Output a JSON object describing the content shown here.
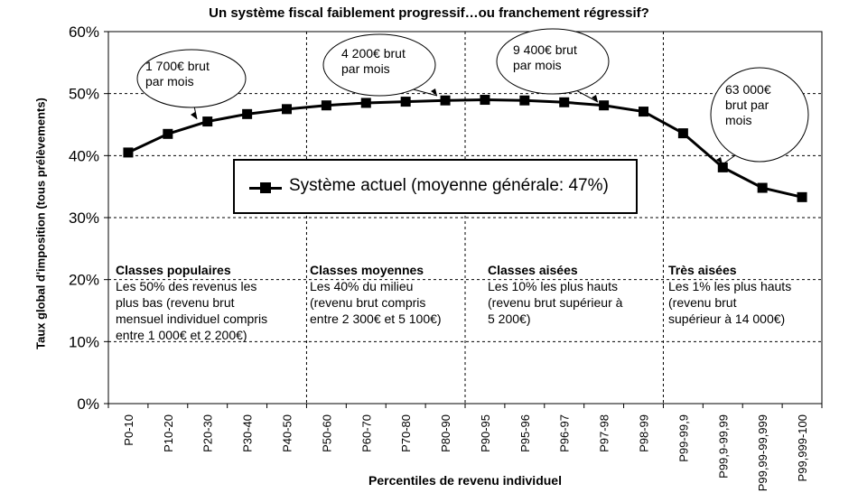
{
  "chart_data": {
    "type": "line",
    "title": "Un système fiscal faiblement progressif…ou franchement régressif?",
    "xlabel": "Percentiles de revenu individuel",
    "ylabel": "Taux global d'imposition (tous prélèvements)",
    "ylim": [
      0,
      60
    ],
    "yticks": [
      "0%",
      "10%",
      "20%",
      "30%",
      "40%",
      "50%",
      "60%"
    ],
    "categories": [
      "P0-10",
      "P10-20",
      "P20-30",
      "P30-40",
      "P40-50",
      "P50-60",
      "P60-70",
      "P70-80",
      "P80-90",
      "P90-95",
      "P95-96",
      "P96-97",
      "P97-98",
      "P98-99",
      "P99-99,9",
      "P99,9-99,99",
      "P99,99-99,999",
      "P99,999-100"
    ],
    "series": [
      {
        "name": "Système actuel (moyenne générale: 47%)",
        "values": [
          40.5,
          43.5,
          45.5,
          46.7,
          47.5,
          48.1,
          48.5,
          48.7,
          48.9,
          49.0,
          48.9,
          48.6,
          48.1,
          47.1,
          43.6,
          38.1,
          34.8,
          33.3
        ]
      }
    ],
    "legend": "center",
    "sections": [
      {
        "title": "Classes populaires",
        "lines": [
          "Les 50% des revenus les",
          "plus bas (revenu brut",
          "mensuel individuel compris",
          "entre 1 000€ et 2 200€)"
        ]
      },
      {
        "title": "Classes moyennes",
        "lines": [
          "Les 40% du milieu",
          "(revenu brut compris",
          "entre 2 300€ et 5 100€)"
        ]
      },
      {
        "title": "Classes aisées",
        "lines": [
          "Les 10% les plus hauts",
          "(revenu brut supérieur à",
          "5 200€)"
        ]
      },
      {
        "title": "Très aisées",
        "lines": [
          "Les 1% les plus hauts",
          "(revenu brut",
          "supérieur à 14 000€)"
        ]
      }
    ],
    "callouts": [
      {
        "lines": [
          "1 700€ brut",
          "par mois"
        ],
        "point": 2
      },
      {
        "lines": [
          "4 200€ brut",
          "par mois"
        ],
        "point": 8
      },
      {
        "lines": [
          "9 400€ brut",
          "par mois"
        ],
        "point": 12
      },
      {
        "lines": [
          "63 000€",
          "brut par",
          "mois"
        ],
        "point": 15
      }
    ]
  }
}
